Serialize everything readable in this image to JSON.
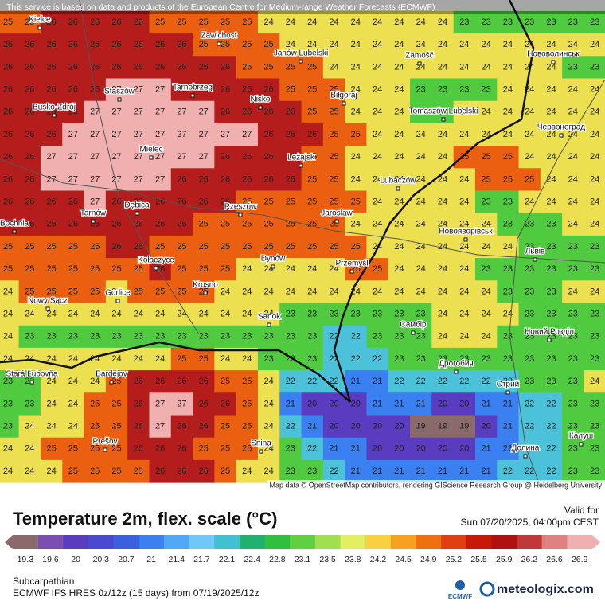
{
  "header": {
    "notice": "This service is based on data and products of the European Centre for Medium-range Weather Forecasts (ECMWF)"
  },
  "map": {
    "attribution": "Map data © OpenStreetMap contributors, rendering GIScience Research Group @ Heidelberg University",
    "places": [
      "Kielce",
      "Zawichost",
      "Janów Lubelski",
      "Zamość",
      "Нововолинськ",
      "Staszów",
      "Tarnobrzeg",
      "Nisko",
      "Biłgoraj",
      "Busko-Zdrój",
      "Tomaszów Lubelski",
      "Червоноград",
      "Mielec",
      "Leżajsk",
      "Lubaczów",
      "Tarnów",
      "Dębica",
      "Rzeszów",
      "Jarosław",
      "Bochnia",
      "Новояворівськ",
      "Львів",
      "Kołaczyce",
      "Dynów",
      "Przemyśl",
      "Gorlice",
      "Krosno",
      "Nowy Sącz",
      "Sanok",
      "Самбір",
      "Новий Розділ",
      "Stará Ľubovňa",
      "Bardejov",
      "Дрогобич",
      "Стрий",
      "Prešov",
      "Snina",
      "Долина",
      "Калуш"
    ],
    "rows": [
      [
        25,
        25,
        26,
        26,
        26,
        26,
        26,
        25,
        25,
        25,
        25,
        25,
        24,
        24,
        24,
        24,
        24,
        24,
        24,
        24,
        24,
        23,
        23,
        23,
        23,
        23,
        23,
        23
      ],
      [
        26,
        26,
        26,
        26,
        26,
        26,
        26,
        26,
        26,
        25,
        25,
        25,
        25,
        24,
        24,
        24,
        24,
        24,
        24,
        24,
        24,
        24,
        24,
        24,
        24,
        24,
        24,
        24
      ],
      [
        26,
        26,
        26,
        26,
        26,
        26,
        26,
        26,
        26,
        26,
        26,
        25,
        25,
        25,
        25,
        24,
        24,
        24,
        24,
        24,
        24,
        24,
        24,
        24,
        24,
        24,
        23,
        23
      ],
      [
        26,
        26,
        26,
        26,
        26,
        27,
        27,
        27,
        26,
        26,
        26,
        26,
        26,
        25,
        25,
        25,
        24,
        24,
        24,
        23,
        23,
        23,
        23,
        24,
        24,
        24,
        24,
        24
      ],
      [
        26,
        26,
        26,
        26,
        27,
        27,
        27,
        27,
        27,
        27,
        26,
        26,
        26,
        26,
        25,
        25,
        24,
        24,
        24,
        23,
        23,
        24,
        24,
        24,
        24,
        24,
        24,
        24
      ],
      [
        26,
        26,
        26,
        27,
        27,
        27,
        27,
        27,
        27,
        27,
        27,
        27,
        26,
        26,
        26,
        25,
        25,
        24,
        24,
        24,
        24,
        24,
        24,
        24,
        24,
        24,
        24,
        24
      ],
      [
        26,
        26,
        27,
        27,
        27,
        27,
        27,
        27,
        27,
        27,
        26,
        26,
        26,
        26,
        25,
        25,
        24,
        24,
        24,
        24,
        24,
        25,
        25,
        25,
        24,
        24,
        24,
        24
      ],
      [
        26,
        26,
        27,
        27,
        27,
        27,
        27,
        27,
        26,
        26,
        26,
        26,
        26,
        26,
        25,
        25,
        24,
        24,
        24,
        24,
        24,
        24,
        25,
        25,
        25,
        24,
        24,
        24
      ],
      [
        26,
        26,
        26,
        26,
        27,
        26,
        26,
        26,
        26,
        26,
        26,
        25,
        25,
        25,
        25,
        25,
        25,
        24,
        24,
        24,
        24,
        24,
        23,
        23,
        24,
        24,
        24,
        24
      ],
      [
        26,
        26,
        26,
        26,
        26,
        26,
        26,
        26,
        26,
        25,
        25,
        25,
        25,
        25,
        25,
        25,
        24,
        24,
        24,
        24,
        24,
        24,
        24,
        23,
        23,
        23,
        24,
        24
      ],
      [
        25,
        25,
        25,
        25,
        25,
        26,
        26,
        25,
        25,
        25,
        25,
        25,
        25,
        25,
        25,
        25,
        25,
        24,
        24,
        24,
        24,
        24,
        24,
        24,
        23,
        23,
        23,
        23
      ],
      [
        25,
        25,
        25,
        25,
        25,
        25,
        25,
        26,
        25,
        25,
        25,
        24,
        24,
        24,
        24,
        24,
        25,
        25,
        24,
        24,
        24,
        24,
        23,
        23,
        23,
        23,
        23,
        23
      ],
      [
        24,
        25,
        25,
        25,
        25,
        24,
        25,
        25,
        25,
        25,
        24,
        24,
        24,
        24,
        24,
        24,
        24,
        24,
        24,
        24,
        24,
        24,
        24,
        23,
        23,
        23,
        24,
        24
      ],
      [
        24,
        24,
        24,
        24,
        24,
        24,
        24,
        24,
        24,
        24,
        24,
        24,
        24,
        23,
        23,
        23,
        23,
        23,
        23,
        23,
        24,
        24,
        24,
        24,
        23,
        23,
        23,
        23
      ],
      [
        24,
        23,
        23,
        23,
        23,
        23,
        23,
        23,
        23,
        23,
        23,
        23,
        23,
        23,
        23,
        22,
        22,
        23,
        23,
        23,
        24,
        24,
        24,
        23,
        23,
        23,
        23,
        23
      ],
      [
        24,
        24,
        24,
        24,
        24,
        24,
        24,
        24,
        25,
        25,
        24,
        24,
        23,
        23,
        23,
        22,
        22,
        22,
        23,
        23,
        23,
        23,
        23,
        23,
        23,
        23,
        23,
        23
      ],
      [
        23,
        23,
        24,
        24,
        24,
        25,
        26,
        26,
        26,
        26,
        25,
        25,
        24,
        22,
        22,
        22,
        21,
        21,
        22,
        22,
        22,
        22,
        22,
        22,
        23,
        23,
        23,
        24
      ],
      [
        23,
        23,
        24,
        24,
        25,
        25,
        26,
        27,
        27,
        26,
        26,
        25,
        24,
        21,
        20,
        20,
        20,
        21,
        21,
        21,
        20,
        20,
        21,
        21,
        22,
        22,
        23,
        23
      ],
      [
        23,
        24,
        24,
        24,
        25,
        25,
        26,
        27,
        26,
        26,
        25,
        25,
        24,
        22,
        21,
        20,
        20,
        20,
        20,
        19,
        19,
        19,
        20,
        21,
        22,
        22,
        23,
        23
      ],
      [
        24,
        24,
        25,
        25,
        25,
        25,
        26,
        26,
        26,
        25,
        25,
        25,
        24,
        23,
        22,
        21,
        21,
        20,
        20,
        20,
        20,
        20,
        21,
        21,
        22,
        22,
        23,
        23
      ],
      [
        24,
        24,
        24,
        25,
        25,
        25,
        25,
        26,
        26,
        26,
        25,
        24,
        24,
        23,
        23,
        22,
        21,
        21,
        21,
        21,
        21,
        21,
        21,
        22,
        22,
        22,
        23,
        23
      ]
    ]
  },
  "legend": {
    "title": "Temperature 2m, flex. scale (°C)",
    "valid_label": "Valid for",
    "valid_time": "Sun 07/20/2025, 04:00pm CEST",
    "scale": [
      19.3,
      19.6,
      20,
      20.3,
      20.7,
      21,
      21.4,
      21.7,
      22.1,
      22.4,
      22.8,
      23.1,
      23.5,
      23.8,
      24.2,
      24.5,
      24.9,
      25.2,
      25.5,
      25.9,
      26.2,
      26.6,
      26.9
    ],
    "colors": [
      "#8a6a6a",
      "#7a4fb0",
      "#5a3cc0",
      "#4a4ad0",
      "#3a60e0",
      "#3a80f0",
      "#50a8f8",
      "#70c8f8",
      "#40c0d0",
      "#20b070",
      "#30c040",
      "#60d040",
      "#a0e050",
      "#e0f060",
      "#f8d040",
      "#f8a020",
      "#f07010",
      "#e04010",
      "#c81808",
      "#b01010",
      "#c03838",
      "#e08080",
      "#f0b0b0"
    ]
  },
  "footer": {
    "region": "Subcarpathian",
    "model": "ECMWF IFS HRES 0z/12z (15 days) from 07/19/2025/12z",
    "ecmwf": "ECMWF",
    "brand": "meteologix.com"
  }
}
